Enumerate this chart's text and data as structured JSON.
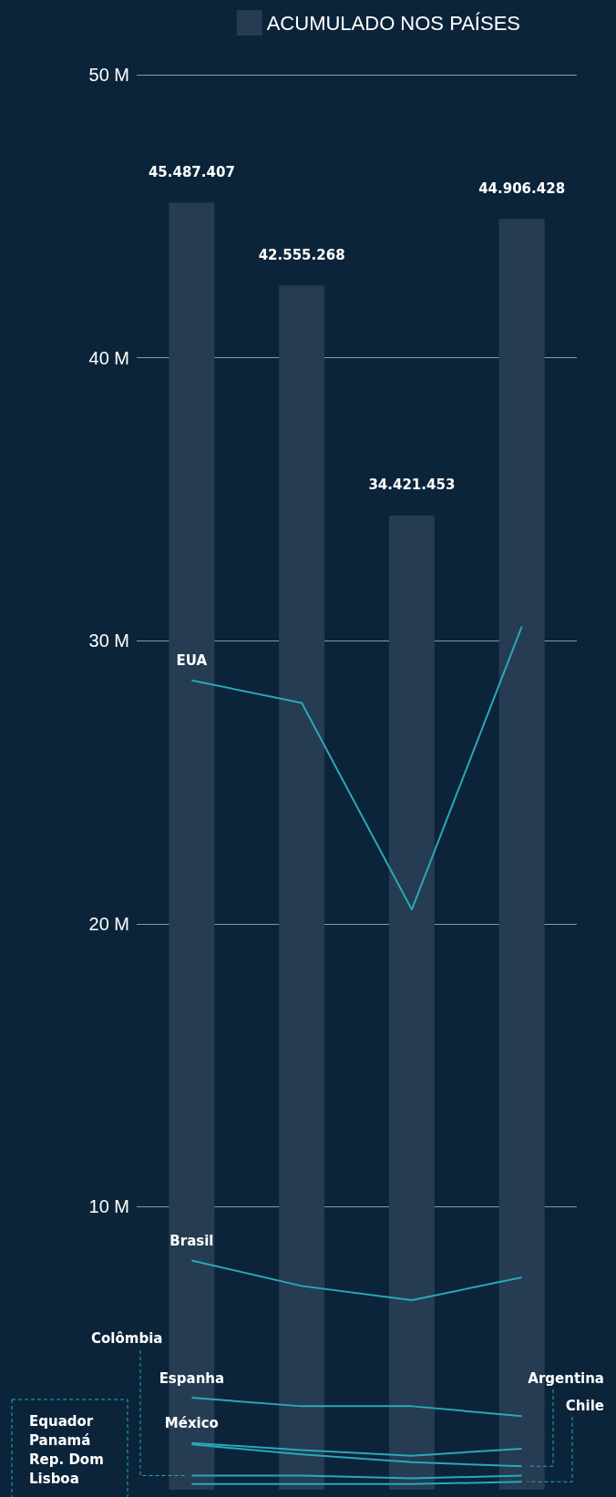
{
  "chart_data": {
    "type": "bar",
    "categories": [
      null,
      null,
      null,
      null
    ],
    "ylim": [
      0,
      50000000
    ],
    "yticks": [
      {
        "value": 10000000,
        "label": "10 M"
      },
      {
        "value": 20000000,
        "label": "20 M"
      },
      {
        "value": 30000000,
        "label": "30 M"
      },
      {
        "value": 40000000,
        "label": "40 M"
      },
      {
        "value": 50000000,
        "label": "50 M"
      }
    ],
    "grid": "y",
    "legend": "top right",
    "series": [
      {
        "name": "ACUMULADO NOS PAÍSES",
        "color": "#253c52",
        "values": [
          45487407,
          42555268,
          34421453,
          44906428
        ],
        "value_labels": [
          "45.487.407",
          "42.555.268",
          "34.421.453",
          "44.906.428"
        ]
      },
      {
        "name": "EUA",
        "type": "line",
        "color": "#2aa8b8",
        "values": [
          28600000,
          27800000,
          20500000,
          30500000
        ]
      },
      {
        "name": "Brasil",
        "type": "line",
        "color": "#2aa8b8",
        "values": [
          8100000,
          7200000,
          6700000,
          7500000
        ]
      },
      {
        "name": "Espanha",
        "type": "line",
        "color": "#2aa8b8",
        "values": [
          3250000,
          2950000,
          2950000,
          2600000
        ]
      },
      {
        "name": "México",
        "type": "line",
        "color": "#2aa8b8",
        "values": [
          1650000,
          1400000,
          1200000,
          1450000
        ]
      },
      {
        "name": "Argentina",
        "type": "line",
        "color": "#2aa8b8",
        "values": [
          1600000,
          1250000,
          970000,
          830000
        ]
      },
      {
        "name": "Colômbia",
        "type": "line",
        "color": "#2aa8b8",
        "values": [
          500000,
          500000,
          400000,
          500000
        ]
      },
      {
        "name": "Chile",
        "type": "line",
        "color": "#2aa8b8",
        "values": [
          200000,
          200000,
          200000,
          280000
        ]
      }
    ],
    "annotations": [
      "Equador",
      "Panamá",
      "Rep. Dom",
      "Lisboa"
    ],
    "marker": "none",
    "line_style": "solid"
  }
}
